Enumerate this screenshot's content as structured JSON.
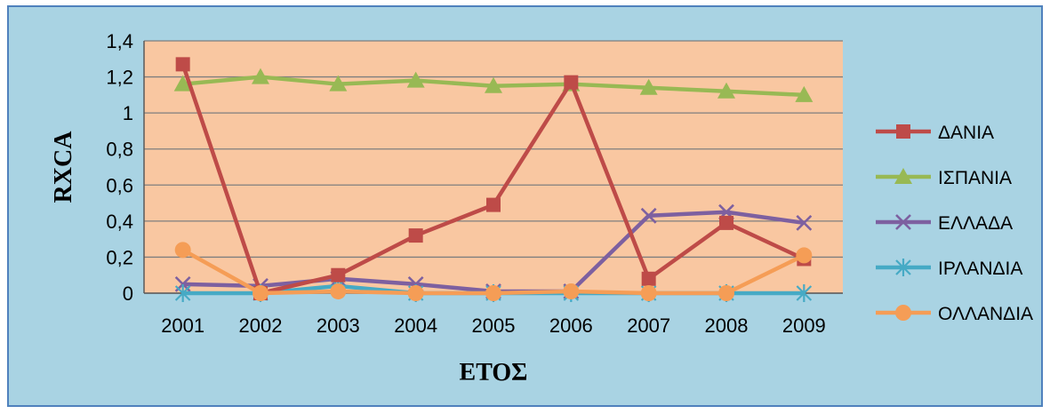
{
  "chart_data": {
    "type": "line",
    "title": "",
    "xlabel": "ΕΤΟΣ",
    "ylabel": "RXCA",
    "ylim": [
      0,
      1.4
    ],
    "ytick_step": 0.2,
    "yticks": [
      "0",
      "0,2",
      "0,4",
      "0,6",
      "0,8",
      "1",
      "1,2",
      "1,4"
    ],
    "categories": [
      "2001",
      "2002",
      "2003",
      "2004",
      "2005",
      "2006",
      "2007",
      "2008",
      "2009"
    ],
    "grid": true,
    "legend_position": "right",
    "colors": {
      "plot_background": "#f9c7a1",
      "chart_background": "#a9d3e3",
      "gridline": "#7f7f7f"
    },
    "series": [
      {
        "name": "ΔΑΝΙΑ",
        "color": "#be4b48",
        "marker": "square",
        "values": [
          1.27,
          0.0,
          0.1,
          0.32,
          0.49,
          1.17,
          0.08,
          0.39,
          0.19
        ]
      },
      {
        "name": "ΙΣΠΑΝΙΑ",
        "color": "#98b954",
        "marker": "triangle",
        "values": [
          1.16,
          1.2,
          1.16,
          1.18,
          1.15,
          1.16,
          1.14,
          1.12,
          1.1
        ]
      },
      {
        "name": "ΕΛΛΑΔΑ",
        "color": "#7d60a0",
        "marker": "x",
        "values": [
          0.05,
          0.04,
          0.08,
          0.05,
          0.01,
          0.01,
          0.43,
          0.45,
          0.39
        ]
      },
      {
        "name": "ΙΡΛΑΝΔΙΑ",
        "color": "#46aac5",
        "marker": "asterisk",
        "values": [
          0.0,
          0.0,
          0.04,
          0.0,
          0.0,
          0.0,
          0.0,
          0.0,
          0.0
        ]
      },
      {
        "name": "ΟΛΛΑΝΔΙΑ",
        "color": "#f59d56",
        "marker": "circle",
        "values": [
          0.24,
          0.0,
          0.01,
          0.0,
          0.0,
          0.01,
          0.0,
          0.0,
          0.21
        ]
      }
    ]
  }
}
